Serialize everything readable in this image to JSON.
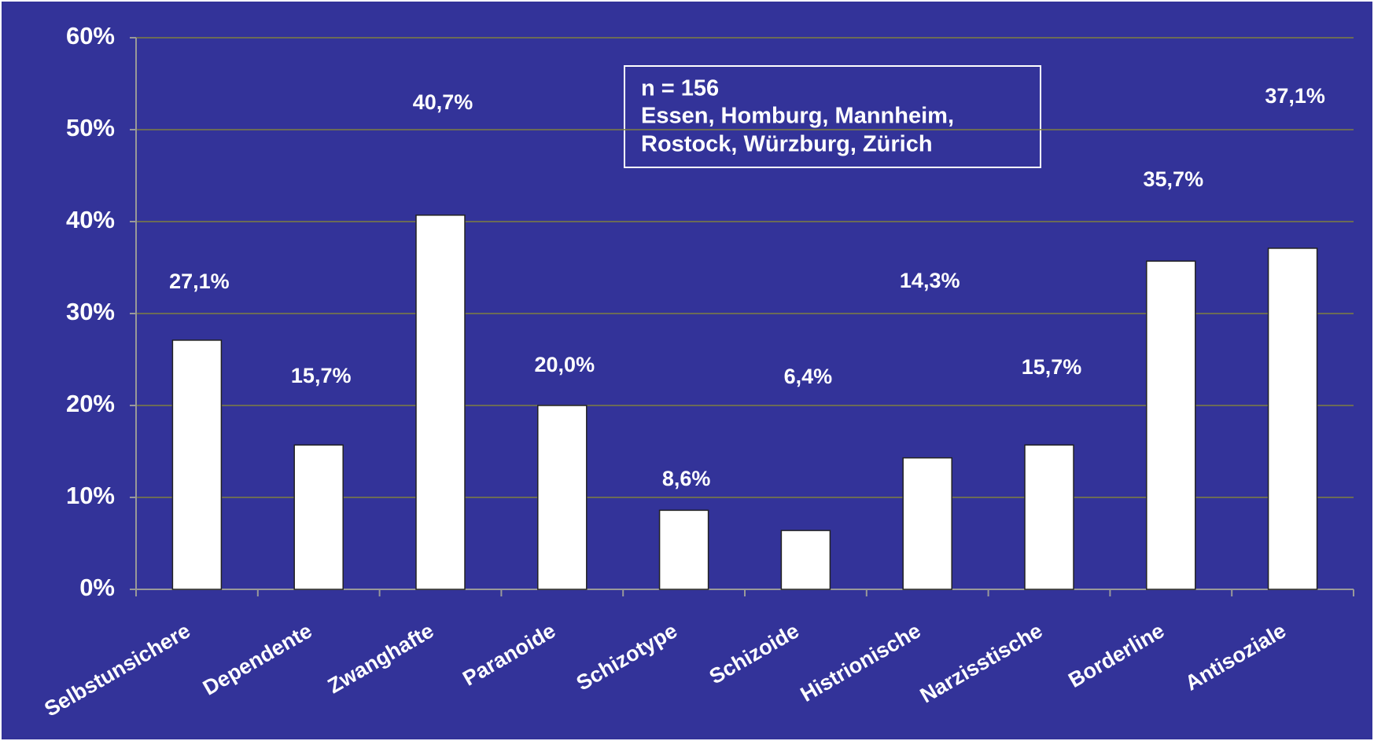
{
  "chart_data": {
    "type": "bar",
    "annotation": [
      "n = 156",
      "Essen, Homburg, Mannheim,",
      "Rostock, Würzburg, Zürich"
    ],
    "categories": [
      "Selbstunsichere",
      "Dependente",
      "Zwanghafte",
      "Paranoide",
      "Schizotype",
      "Schizoide",
      "Histrionische",
      "Narzisstische",
      "Borderline",
      "Antisoziale"
    ],
    "values": [
      27.1,
      15.7,
      40.7,
      20.0,
      8.6,
      6.4,
      14.3,
      15.7,
      35.7,
      37.1
    ],
    "value_labels": [
      "27,1%",
      "15,7%",
      "40,7%",
      "20,0%",
      "8,6%",
      "6,4%",
      "14,3%",
      "15,7%",
      "35,7%",
      "37,1%"
    ],
    "color": "#ffffff",
    "ylim": [
      0,
      60
    ],
    "yticks": [
      {
        "value": 0,
        "label": "0%"
      },
      {
        "value": 10,
        "label": "10%"
      },
      {
        "value": 20,
        "label": "20%"
      },
      {
        "value": 30,
        "label": "30%"
      },
      {
        "value": 40,
        "label": "40%"
      },
      {
        "value": 50,
        "label": "50%"
      },
      {
        "value": 60,
        "label": "60%"
      }
    ],
    "grid": true
  }
}
